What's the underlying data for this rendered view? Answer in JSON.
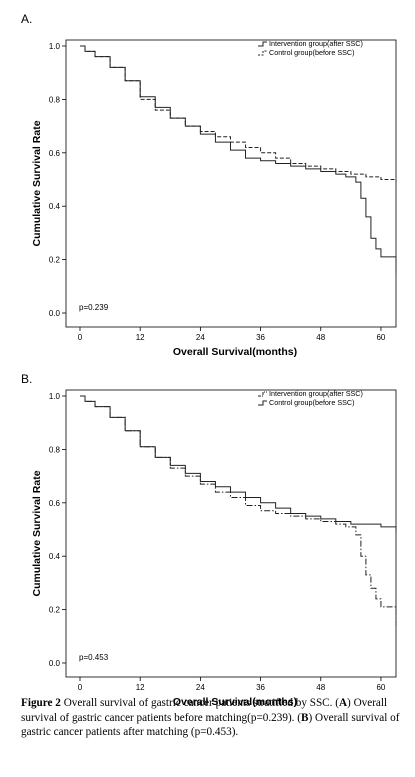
{
  "chart_data": [
    {
      "type": "line",
      "panel_label": "A.",
      "xlabel": "Overall Survival(months)",
      "ylabel": "Cumulative Survival Rate",
      "xlim": [
        0,
        63
      ],
      "ylim": [
        0,
        1
      ],
      "x_ticks": [
        0,
        12,
        24,
        36,
        48,
        60
      ],
      "y_ticks": [
        0.0,
        0.2,
        0.4,
        0.6,
        0.8,
        1.0
      ],
      "y_tick_labels": [
        "0.0",
        "0.2",
        "0.4",
        "0.6",
        "0.8",
        "1.0"
      ],
      "annotation": "p=0.239",
      "legend_position": "top-right",
      "grid": false,
      "series": [
        {
          "name": "Intervention group(after SSC)",
          "style": "solid",
          "x": [
            0,
            1,
            3,
            6,
            9,
            12,
            15,
            18,
            21,
            24,
            27,
            30,
            33,
            36,
            39,
            42,
            45,
            48,
            51,
            53,
            55,
            56,
            57,
            58,
            59,
            60,
            62,
            63
          ],
          "y": [
            1.0,
            0.98,
            0.96,
            0.92,
            0.87,
            0.81,
            0.77,
            0.73,
            0.7,
            0.67,
            0.64,
            0.61,
            0.58,
            0.57,
            0.56,
            0.55,
            0.54,
            0.53,
            0.52,
            0.51,
            0.49,
            0.43,
            0.36,
            0.28,
            0.24,
            0.21,
            0.21,
            0.15
          ]
        },
        {
          "name": "Control group(before SSC)",
          "style": "dashed",
          "x": [
            0,
            1,
            3,
            6,
            9,
            12,
            15,
            18,
            21,
            24,
            27,
            30,
            33,
            36,
            39,
            42,
            45,
            48,
            51,
            54,
            57,
            60,
            63
          ],
          "y": [
            1.0,
            0.98,
            0.96,
            0.92,
            0.87,
            0.8,
            0.76,
            0.73,
            0.7,
            0.68,
            0.66,
            0.64,
            0.62,
            0.6,
            0.58,
            0.56,
            0.55,
            0.54,
            0.53,
            0.52,
            0.51,
            0.5,
            0.49
          ]
        }
      ]
    },
    {
      "type": "line",
      "panel_label": "B.",
      "xlabel": "Overall Survival(months)",
      "ylabel": "Cumulative Survival Rate",
      "xlim": [
        0,
        63
      ],
      "ylim": [
        0,
        1
      ],
      "x_ticks": [
        0,
        12,
        24,
        36,
        48,
        60
      ],
      "y_ticks": [
        0.0,
        0.2,
        0.4,
        0.6,
        0.8,
        1.0
      ],
      "y_tick_labels": [
        "0.0",
        "0.2",
        "0.4",
        "0.6",
        "0.8",
        "1.0"
      ],
      "annotation": "p=0.453",
      "legend_position": "top-right",
      "grid": false,
      "series": [
        {
          "name": "Intervention group(after SSC)",
          "style": "dashdot",
          "x": [
            0,
            1,
            3,
            6,
            9,
            12,
            15,
            18,
            21,
            24,
            27,
            30,
            33,
            36,
            39,
            42,
            45,
            48,
            51,
            53,
            55,
            56,
            57,
            58,
            59,
            60,
            62,
            63
          ],
          "y": [
            1.0,
            0.98,
            0.96,
            0.92,
            0.87,
            0.81,
            0.77,
            0.73,
            0.7,
            0.67,
            0.64,
            0.62,
            0.59,
            0.57,
            0.56,
            0.55,
            0.54,
            0.53,
            0.52,
            0.51,
            0.48,
            0.4,
            0.33,
            0.28,
            0.24,
            0.21,
            0.21,
            0.14
          ]
        },
        {
          "name": "Control group(before SSC)",
          "style": "solid",
          "x": [
            0,
            1,
            3,
            6,
            9,
            12,
            15,
            18,
            21,
            24,
            27,
            30,
            33,
            36,
            39,
            42,
            45,
            48,
            51,
            54,
            57,
            60,
            63
          ],
          "y": [
            1.0,
            0.98,
            0.96,
            0.92,
            0.87,
            0.81,
            0.77,
            0.74,
            0.71,
            0.68,
            0.66,
            0.64,
            0.62,
            0.6,
            0.58,
            0.56,
            0.55,
            0.54,
            0.53,
            0.52,
            0.52,
            0.51,
            0.49
          ]
        }
      ]
    }
  ],
  "caption": {
    "figure_label": "Figure 2",
    "text_1": " Overall survival of gastric cancer patients stratified by SSC. (",
    "a_label": "A",
    "text_2": ") Overall survival of gastric cancer patients before matching(p=0.239). (",
    "b_label": "B",
    "text_3": ") Overall survival of gastric cancer patients after matching (p=0.453)."
  }
}
